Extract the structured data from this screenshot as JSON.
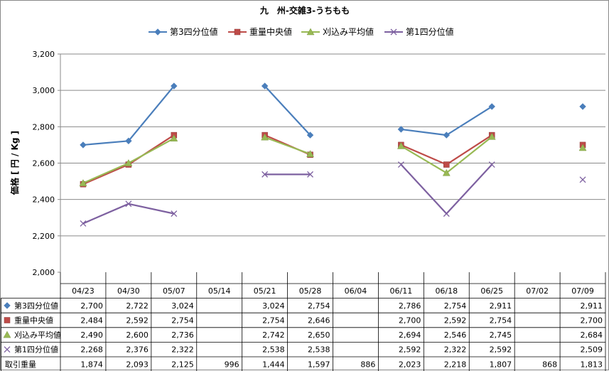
{
  "chart_data": {
    "type": "line",
    "title": "九　州-交雑3-うちもも",
    "ylabel": "価格 [ 円 / Kg ]",
    "ylim": [
      2000,
      3200
    ],
    "yticks": [
      2000,
      2200,
      2400,
      2600,
      2800,
      3000,
      3200
    ],
    "ytick_labels": [
      "2,000",
      "2,200",
      "2,400",
      "2,600",
      "2,800",
      "3,000",
      "3,200"
    ],
    "grid": true,
    "legend_position": "top",
    "categories": [
      "04/23",
      "04/30",
      "05/07",
      "05/14",
      "05/21",
      "05/28",
      "06/04",
      "06/11",
      "06/18",
      "06/25",
      "07/02",
      "07/09"
    ],
    "series": [
      {
        "name": "第3四分位値",
        "color": "#4a7ebb",
        "marker": "diamond",
        "values": [
          2700,
          2722,
          3024,
          null,
          3024,
          2754,
          null,
          2786,
          2754,
          2911,
          null,
          2911
        ],
        "labels": [
          "2,700",
          "2,722",
          "3,024",
          "",
          "3,024",
          "2,754",
          "",
          "2,786",
          "2,754",
          "2,911",
          "",
          "2,911"
        ]
      },
      {
        "name": "重量中央値",
        "color": "#be4b48",
        "marker": "square",
        "values": [
          2484,
          2592,
          2754,
          null,
          2754,
          2646,
          null,
          2700,
          2592,
          2754,
          null,
          2700
        ],
        "labels": [
          "2,484",
          "2,592",
          "2,754",
          "",
          "2,754",
          "2,646",
          "",
          "2,700",
          "2,592",
          "2,754",
          "",
          "2,700"
        ]
      },
      {
        "name": "刈込み平均値",
        "color": "#98b954",
        "marker": "triangle",
        "values": [
          2490,
          2600,
          2736,
          null,
          2742,
          2650,
          null,
          2694,
          2546,
          2745,
          null,
          2684
        ],
        "labels": [
          "2,490",
          "2,600",
          "2,736",
          "",
          "2,742",
          "2,650",
          "",
          "2,694",
          "2,546",
          "2,745",
          "",
          "2,684"
        ]
      },
      {
        "name": "第1四分位値",
        "color": "#7d60a0",
        "marker": "x",
        "values": [
          2268,
          2376,
          2322,
          null,
          2538,
          2538,
          null,
          2592,
          2322,
          2592,
          null,
          2509
        ],
        "labels": [
          "2,268",
          "2,376",
          "2,322",
          "",
          "2,538",
          "2,538",
          "",
          "2,592",
          "2,322",
          "2,592",
          "",
          "2,509"
        ]
      }
    ],
    "table_extra_row": {
      "name": "取引重量",
      "labels": [
        "1,874",
        "2,093",
        "2,125",
        "996",
        "1,444",
        "1,597",
        "886",
        "2,023",
        "2,218",
        "1,807",
        "868",
        "1,813"
      ]
    }
  }
}
